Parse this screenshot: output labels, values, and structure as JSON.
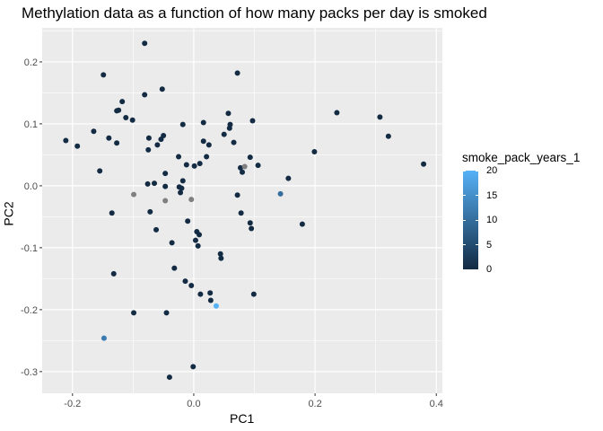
{
  "chart_data": {
    "type": "scatter",
    "title": "Methylation data as a function of how many packs per day is smoked",
    "xlabel": "PC1",
    "ylabel": "PC2",
    "xlim": [
      -0.25,
      0.41
    ],
    "ylim": [
      -0.335,
      0.255
    ],
    "x_ticks": [
      -0.2,
      0.0,
      0.2,
      0.4
    ],
    "x_tick_labels": [
      "-0.2",
      "0.0",
      "0.2",
      "0.4"
    ],
    "y_ticks": [
      -0.3,
      -0.2,
      -0.1,
      0.0,
      0.1,
      0.2
    ],
    "y_tick_labels": [
      "-0.3",
      "-0.2",
      "-0.1",
      "0.0",
      "0.1",
      "0.2"
    ],
    "grid": true,
    "colorbar": {
      "title": "smoke_pack_years_1",
      "min": 0,
      "max": 20,
      "ticks": [
        0,
        5,
        10,
        15,
        20
      ],
      "tick_labels": [
        "0",
        "5",
        "10",
        "15",
        "20"
      ],
      "low_color": "#132B43",
      "high_color": "#56B1F7",
      "na_color": "#7F7F7F"
    },
    "points": [
      {
        "x": -0.211,
        "y": 0.073,
        "c": 0
      },
      {
        "x": -0.192,
        "y": 0.064,
        "c": 0
      },
      {
        "x": -0.165,
        "y": 0.088,
        "c": 0
      },
      {
        "x": -0.155,
        "y": 0.024,
        "c": 0
      },
      {
        "x": -0.149,
        "y": 0.179,
        "c": 0
      },
      {
        "x": -0.148,
        "y": -0.246,
        "c": 12
      },
      {
        "x": -0.14,
        "y": 0.077,
        "c": 0
      },
      {
        "x": -0.135,
        "y": -0.044,
        "c": 0
      },
      {
        "x": -0.132,
        "y": -0.142,
        "c": 0
      },
      {
        "x": -0.127,
        "y": 0.069,
        "c": 0
      },
      {
        "x": -0.127,
        "y": 0.121,
        "c": 0
      },
      {
        "x": -0.124,
        "y": 0.122,
        "c": 0
      },
      {
        "x": -0.118,
        "y": 0.136,
        "c": 0
      },
      {
        "x": -0.112,
        "y": 0.11,
        "c": 0
      },
      {
        "x": -0.101,
        "y": 0.106,
        "c": 0
      },
      {
        "x": -0.099,
        "y": -0.014,
        "c": null
      },
      {
        "x": -0.099,
        "y": -0.205,
        "c": 0
      },
      {
        "x": -0.081,
        "y": 0.23,
        "c": 0
      },
      {
        "x": -0.081,
        "y": 0.147,
        "c": 0
      },
      {
        "x": -0.076,
        "y": 0.003,
        "c": 0
      },
      {
        "x": -0.075,
        "y": 0.058,
        "c": 0
      },
      {
        "x": -0.074,
        "y": 0.077,
        "c": 0
      },
      {
        "x": -0.072,
        "y": -0.042,
        "c": 0
      },
      {
        "x": -0.065,
        "y": 0.004,
        "c": 0
      },
      {
        "x": -0.062,
        "y": -0.071,
        "c": 0
      },
      {
        "x": -0.06,
        "y": 0.066,
        "c": 0
      },
      {
        "x": -0.052,
        "y": 0.156,
        "c": 0
      },
      {
        "x": -0.054,
        "y": 0.075,
        "c": 0
      },
      {
        "x": -0.05,
        "y": 0.081,
        "c": 0
      },
      {
        "x": -0.047,
        "y": -0.024,
        "c": null
      },
      {
        "x": -0.047,
        "y": 0.02,
        "c": 0
      },
      {
        "x": -0.047,
        "y": -0.001,
        "c": 0
      },
      {
        "x": -0.045,
        "y": -0.205,
        "c": 0
      },
      {
        "x": -0.04,
        "y": -0.309,
        "c": 0
      },
      {
        "x": -0.036,
        "y": -0.092,
        "c": 0
      },
      {
        "x": -0.032,
        "y": -0.133,
        "c": 0
      },
      {
        "x": -0.025,
        "y": 0.047,
        "c": 0
      },
      {
        "x": -0.024,
        "y": -0.002,
        "c": 0
      },
      {
        "x": -0.022,
        "y": -0.011,
        "c": 0
      },
      {
        "x": -0.02,
        "y": -0.004,
        "c": 0
      },
      {
        "x": -0.018,
        "y": 0.008,
        "c": 0
      },
      {
        "x": -0.018,
        "y": 0.099,
        "c": 0
      },
      {
        "x": -0.014,
        "y": -0.154,
        "c": 0
      },
      {
        "x": -0.012,
        "y": 0.034,
        "c": 0
      },
      {
        "x": -0.01,
        "y": -0.057,
        "c": 0
      },
      {
        "x": -0.004,
        "y": -0.022,
        "c": null
      },
      {
        "x": -0.004,
        "y": -0.161,
        "c": 0
      },
      {
        "x": -0.001,
        "y": -0.292,
        "c": 0
      },
      {
        "x": 0.001,
        "y": 0.032,
        "c": 0
      },
      {
        "x": 0.003,
        "y": -0.088,
        "c": 0
      },
      {
        "x": 0.005,
        "y": -0.074,
        "c": 0
      },
      {
        "x": 0.007,
        "y": -0.097,
        "c": 0
      },
      {
        "x": 0.009,
        "y": -0.079,
        "c": 0
      },
      {
        "x": 0.01,
        "y": 0.036,
        "c": 0
      },
      {
        "x": 0.011,
        "y": -0.175,
        "c": 0
      },
      {
        "x": 0.016,
        "y": 0.102,
        "c": 0
      },
      {
        "x": 0.016,
        "y": 0.072,
        "c": 0
      },
      {
        "x": 0.021,
        "y": 0.047,
        "c": 0
      },
      {
        "x": 0.025,
        "y": 0.066,
        "c": 0
      },
      {
        "x": 0.027,
        "y": -0.173,
        "c": 0
      },
      {
        "x": 0.028,
        "y": -0.185,
        "c": 0
      },
      {
        "x": 0.037,
        "y": -0.194,
        "c": 20
      },
      {
        "x": 0.044,
        "y": -0.11,
        "c": 0
      },
      {
        "x": 0.045,
        "y": -0.117,
        "c": 0
      },
      {
        "x": 0.05,
        "y": 0.083,
        "c": 0
      },
      {
        "x": 0.057,
        "y": 0.117,
        "c": 0
      },
      {
        "x": 0.059,
        "y": 0.093,
        "c": 0
      },
      {
        "x": 0.06,
        "y": 0.099,
        "c": 0
      },
      {
        "x": 0.066,
        "y": 0.07,
        "c": 0
      },
      {
        "x": 0.072,
        "y": -0.015,
        "c": 0
      },
      {
        "x": 0.072,
        "y": 0.182,
        "c": 0
      },
      {
        "x": 0.077,
        "y": 0.029,
        "c": 0
      },
      {
        "x": 0.078,
        "y": -0.044,
        "c": 0
      },
      {
        "x": 0.08,
        "y": 0.022,
        "c": 0
      },
      {
        "x": 0.084,
        "y": 0.031,
        "c": null
      },
      {
        "x": 0.093,
        "y": 0.046,
        "c": 0
      },
      {
        "x": 0.093,
        "y": -0.06,
        "c": 0
      },
      {
        "x": 0.095,
        "y": -0.069,
        "c": 0
      },
      {
        "x": 0.097,
        "y": 0.105,
        "c": 0
      },
      {
        "x": 0.099,
        "y": -0.175,
        "c": 0
      },
      {
        "x": 0.106,
        "y": 0.033,
        "c": 0
      },
      {
        "x": 0.143,
        "y": -0.013,
        "c": 10
      },
      {
        "x": 0.156,
        "y": 0.012,
        "c": 0
      },
      {
        "x": 0.179,
        "y": -0.062,
        "c": 0
      },
      {
        "x": 0.199,
        "y": 0.055,
        "c": 0
      },
      {
        "x": 0.236,
        "y": 0.118,
        "c": 0
      },
      {
        "x": 0.307,
        "y": 0.111,
        "c": 0
      },
      {
        "x": 0.321,
        "y": 0.08,
        "c": 0
      },
      {
        "x": 0.379,
        "y": 0.035,
        "c": 0
      }
    ]
  }
}
